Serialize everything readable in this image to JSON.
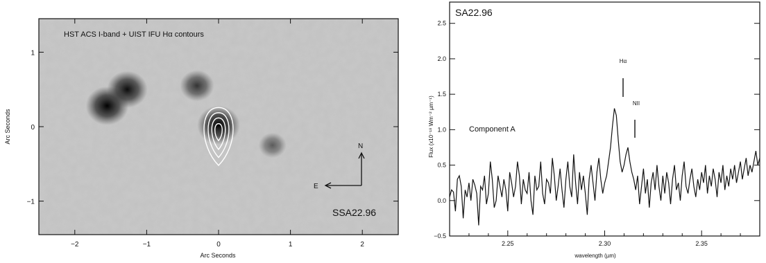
{
  "left_panel": {
    "caption": "HST ACS I-band + UIST IFU Hα contours",
    "object_label": "SSA22.96",
    "xlabel": "Arc Seconds",
    "ylabel": "Arc Seconds",
    "x_ticks": [
      "−2",
      "−1",
      "0",
      "1",
      "2"
    ],
    "y_ticks": [
      "1",
      "0",
      "−1"
    ],
    "compass_north": "N",
    "compass_east": "E"
  },
  "right_panel": {
    "object_label": "SA22.96",
    "component_label": "Component A",
    "line_label_ha": "Hα",
    "line_label_nii": "NII",
    "xlabel": "wavelength (µm)",
    "ylabel": "Flux (x10⁻¹⁸ Wm⁻² µm⁻¹)",
    "x_ticks": [
      "2.25",
      "2.30",
      "2.35"
    ],
    "y_ticks": [
      "−0.5",
      "0.0",
      "0.5",
      "1.0",
      "1.5",
      "2.0",
      "2.5"
    ]
  },
  "chart_data": [
    {
      "type": "heatmap",
      "title": "HST ACS I-band + UIST IFU Hα contours",
      "xlabel": "Arc Seconds",
      "ylabel": "Arc Seconds",
      "xlim": [
        -2.5,
        2.5
      ],
      "ylim": [
        -1.45,
        1.45
      ],
      "sources": [
        {
          "x": -1.55,
          "y": 0.28,
          "strength": 1.0
        },
        {
          "x": -1.27,
          "y": 0.5,
          "strength": 0.9
        },
        {
          "x": -0.3,
          "y": 0.55,
          "strength": 0.6
        },
        {
          "x": 0.0,
          "y": 0.02,
          "strength": 1.0
        },
        {
          "x": 0.75,
          "y": -0.25,
          "strength": 0.3
        }
      ],
      "contour_center": {
        "x": 0.0,
        "y": -0.05
      }
    },
    {
      "type": "line",
      "title": "SA22.96",
      "xlabel": "wavelength (µm)",
      "ylabel": "Flux (x10⁻¹⁸ Wm⁻² µm⁻¹)",
      "xlim": [
        2.22,
        2.38
      ],
      "ylim": [
        -0.5,
        2.8
      ],
      "annotations": [
        {
          "text": "Hα",
          "x": 2.308
        },
        {
          "text": "NII",
          "x": 2.314
        },
        {
          "text": "Component A"
        }
      ],
      "series": [
        {
          "x": [
            2.22,
            2.221,
            2.222,
            2.223,
            2.224,
            2.225,
            2.226,
            2.227,
            2.228,
            2.229,
            2.23,
            2.231,
            2.232,
            2.233,
            2.234,
            2.235,
            2.236,
            2.237,
            2.238,
            2.239,
            2.24,
            2.241,
            2.242,
            2.243,
            2.244,
            2.245,
            2.246,
            2.247,
            2.248,
            2.249,
            2.25,
            2.251,
            2.252,
            2.253,
            2.254,
            2.255,
            2.256,
            2.257,
            2.258,
            2.259,
            2.26,
            2.261,
            2.262,
            2.263,
            2.264,
            2.265,
            2.266,
            2.267,
            2.268,
            2.269,
            2.27,
            2.271,
            2.272,
            2.273,
            2.274,
            2.275,
            2.276,
            2.277,
            2.278,
            2.279,
            2.28,
            2.281,
            2.282,
            2.283,
            2.284,
            2.285,
            2.286,
            2.287,
            2.288,
            2.289,
            2.29,
            2.291,
            2.292,
            2.293,
            2.294,
            2.295,
            2.296,
            2.297,
            2.298,
            2.299,
            2.3,
            2.301,
            2.302,
            2.303,
            2.304,
            2.305,
            2.306,
            2.307,
            2.308,
            2.309,
            2.31,
            2.311,
            2.312,
            2.313,
            2.314,
            2.315,
            2.316,
            2.317,
            2.318,
            2.319,
            2.32,
            2.321,
            2.322,
            2.323,
            2.324,
            2.325,
            2.326,
            2.327,
            2.328,
            2.329,
            2.33,
            2.331,
            2.332,
            2.333,
            2.334,
            2.335,
            2.336,
            2.337,
            2.338,
            2.339,
            2.34,
            2.341,
            2.342,
            2.343,
            2.344,
            2.345,
            2.346,
            2.347,
            2.348,
            2.349,
            2.35,
            2.351,
            2.352,
            2.353,
            2.354,
            2.355,
            2.356,
            2.357,
            2.358,
            2.359,
            2.36,
            2.361,
            2.362,
            2.363,
            2.364,
            2.365,
            2.366,
            2.367,
            2.368,
            2.369,
            2.37,
            2.371,
            2.372,
            2.373,
            2.374,
            2.375,
            2.376,
            2.377,
            2.378,
            2.379,
            2.38
          ],
          "values": [
            0.05,
            0.15,
            0.12,
            -0.15,
            0.3,
            0.35,
            0.2,
            -0.25,
            0.15,
            0.05,
            0.25,
            0.0,
            0.3,
            0.22,
            0.1,
            -0.35,
            0.2,
            0.15,
            0.35,
            -0.05,
            0.1,
            0.55,
            0.3,
            -0.1,
            0.0,
            0.35,
            0.2,
            0.05,
            0.3,
            0.15,
            -0.15,
            0.4,
            0.25,
            0.05,
            0.2,
            0.55,
            0.35,
            -0.05,
            0.3,
            0.15,
            0.1,
            0.4,
            0.0,
            -0.2,
            0.35,
            0.15,
            0.2,
            0.55,
            0.1,
            -0.05,
            0.3,
            0.25,
            0.1,
            0.6,
            0.35,
            0.0,
            0.2,
            0.45,
            0.15,
            -0.1,
            0.3,
            0.55,
            0.2,
            0.05,
            0.65,
            0.25,
            -0.05,
            0.4,
            0.15,
            0.35,
            0.1,
            -0.2,
            0.3,
            0.5,
            0.25,
            0.0,
            0.4,
            0.6,
            0.3,
            0.1,
            0.25,
            0.35,
            0.55,
            0.75,
            1.05,
            1.3,
            1.2,
            0.85,
            0.55,
            0.4,
            0.5,
            0.65,
            0.75,
            0.55,
            0.4,
            0.3,
            0.15,
            0.35,
            -0.05,
            0.2,
            0.45,
            0.1,
            0.3,
            -0.1,
            0.25,
            0.4,
            0.15,
            0.5,
            0.2,
            0.0,
            0.35,
            0.1,
            0.4,
            0.25,
            -0.05,
            0.3,
            0.5,
            0.15,
            0.25,
            0.0,
            0.35,
            0.55,
            0.2,
            0.1,
            0.3,
            0.45,
            0.2,
            0.05,
            0.3,
            0.15,
            0.4,
            0.25,
            0.5,
            0.1,
            0.35,
            0.2,
            0.45,
            0.3,
            0.05,
            0.4,
            0.25,
            0.5,
            0.15,
            0.35,
            0.2,
            0.45,
            0.3,
            0.5,
            0.25,
            0.4,
            0.55,
            0.3,
            0.45,
            0.6,
            0.35,
            0.5,
            0.4,
            0.55,
            0.7,
            0.5,
            0.6
          ]
        }
      ]
    }
  ]
}
